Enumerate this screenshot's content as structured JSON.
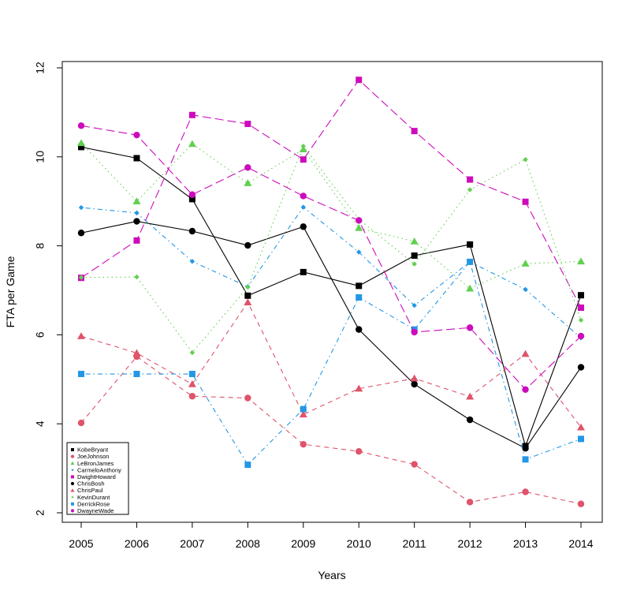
{
  "chart_data": {
    "type": "line",
    "title": "",
    "xlabel": "Years",
    "ylabel": "FTA per Game",
    "x": [
      2005,
      2006,
      2007,
      2008,
      2009,
      2010,
      2011,
      2012,
      2013,
      2014
    ],
    "x_tick_labels": [
      "2005",
      "2006",
      "2007",
      "2008",
      "2009",
      "2010",
      "2011",
      "2012",
      "2013",
      "2014"
    ],
    "ylim": [
      2,
      12
    ],
    "y_ticks": [
      2,
      4,
      6,
      8,
      10,
      12
    ],
    "y_tick_labels": [
      "2",
      "4",
      "6",
      "8",
      "10",
      "12"
    ],
    "grid": false,
    "legend_position": "bottom-left",
    "series": [
      {
        "name": "KobeBryant",
        "color": "#000000",
        "marker": "square",
        "line": "solid",
        "values": [
          10.22,
          9.97,
          9.05,
          6.88,
          7.41,
          7.1,
          7.78,
          8.03,
          3.5,
          6.89
        ]
      },
      {
        "name": "JoeJohnson",
        "color": "#DF536B",
        "marker": "circle",
        "line": "dashed",
        "values": [
          4.02,
          5.51,
          4.62,
          4.58,
          3.54,
          3.38,
          3.09,
          2.24,
          2.47,
          2.2
        ]
      },
      {
        "name": "LeBronJames",
        "color": "#61D04F",
        "marker": "triangle",
        "line": "dotted",
        "values": [
          10.31,
          9.0,
          10.29,
          9.41,
          10.17,
          8.4,
          8.1,
          7.04,
          7.6,
          7.65
        ]
      },
      {
        "name": "CarmeloAnthony",
        "color": "#2297E6",
        "marker": "diamond",
        "line": "dotdash",
        "values": [
          8.86,
          8.74,
          7.65,
          7.08,
          8.87,
          7.86,
          6.66,
          7.64,
          7.02,
          5.93
        ]
      },
      {
        "name": "DwightHoward",
        "color": "#CD0BBC",
        "marker": "square",
        "line": "longdash",
        "values": [
          7.28,
          8.12,
          10.94,
          10.74,
          9.94,
          11.73,
          10.58,
          9.49,
          8.99,
          6.61
        ]
      },
      {
        "name": "ChrisBosh",
        "color": "#000000",
        "marker": "circle",
        "line": "solid",
        "values": [
          8.29,
          8.55,
          8.33,
          8.01,
          8.43,
          6.12,
          4.89,
          4.09,
          3.45,
          5.27
        ]
      },
      {
        "name": "ChrisPaul",
        "color": "#DF536B",
        "marker": "triangle",
        "line": "dashed",
        "values": [
          5.97,
          5.59,
          4.89,
          6.73,
          4.21,
          4.79,
          5.02,
          4.61,
          5.57,
          3.92
        ]
      },
      {
        "name": "KevinDurant",
        "color": "#61D04F",
        "marker": "diamond",
        "line": "dotted",
        "values": [
          7.29,
          7.3,
          5.6,
          7.07,
          10.24,
          8.6,
          7.59,
          9.26,
          9.94,
          6.33
        ]
      },
      {
        "name": "DerrickRose",
        "color": "#2297E6",
        "marker": "square",
        "line": "dotdash",
        "values": [
          5.12,
          5.12,
          5.12,
          3.08,
          4.33,
          6.84,
          6.12,
          7.64,
          3.2,
          3.66
        ]
      },
      {
        "name": "DwayneWade",
        "color": "#CD0BBC",
        "marker": "circle",
        "line": "longdash",
        "values": [
          10.7,
          10.49,
          9.15,
          9.76,
          9.12,
          8.57,
          6.06,
          6.16,
          4.77,
          5.97
        ]
      }
    ]
  }
}
